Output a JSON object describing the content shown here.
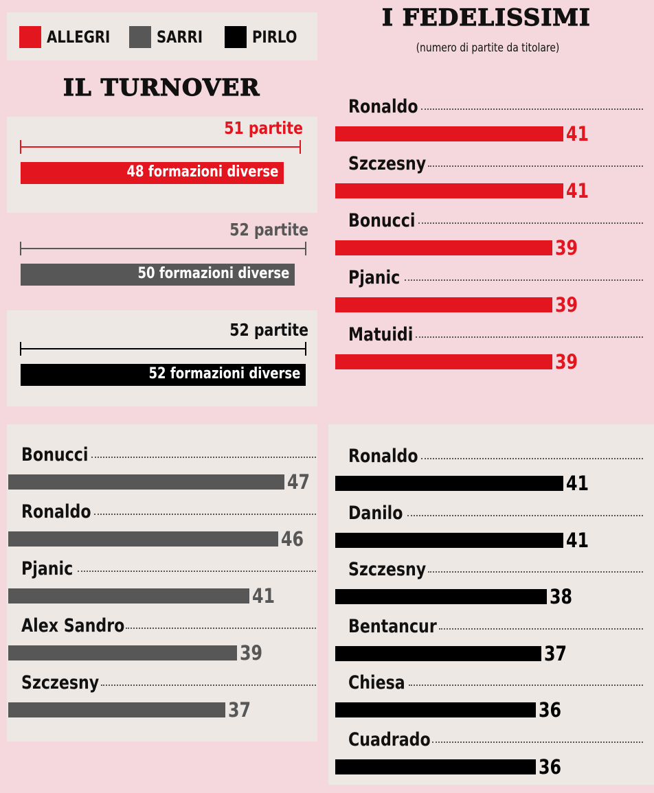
{
  "legend": [
    {
      "label": "ALLEGRI",
      "color": "#e3151f"
    },
    {
      "label": "SARRI",
      "color": "#575757"
    },
    {
      "label": "PIRLO",
      "color": "#000000"
    }
  ],
  "turnover": {
    "title": "IL TURNOVER",
    "items": [
      {
        "coach": "ALLEGRI",
        "partite_label": "51 partite",
        "formazioni_label": "48 formazioni diverse",
        "partite": 51,
        "formazioni": 48,
        "color": "#e3151f",
        "label_color": "#e3151f"
      },
      {
        "coach": "SARRI",
        "partite_label": "52 partite",
        "formazioni_label": "50 formazioni diverse",
        "partite": 52,
        "formazioni": 50,
        "color": "#575757",
        "label_color": "#575757"
      },
      {
        "coach": "PIRLO",
        "partite_label": "52 partite",
        "formazioni_label": "52 formazioni diverse",
        "partite": 52,
        "formazioni": 52,
        "color": "#000000",
        "label_color": "#111111"
      }
    ]
  },
  "fedelissimi": {
    "title": "I FEDELISSIMI",
    "subtitle": "(numero di partite da titolare)"
  },
  "chart_data": {
    "type": "bar",
    "series": [
      {
        "name": "ALLEGRI",
        "color": "#e3151f",
        "values_color": "#e3151f",
        "players": [
          "Ronaldo",
          "Szczesny",
          "Bonucci",
          "Pjanic",
          "Matuidi"
        ],
        "values": [
          41,
          41,
          39,
          39,
          39
        ]
      },
      {
        "name": "SARRI",
        "color": "#575757",
        "values_color": "#575757",
        "players": [
          "Bonucci",
          "Ronaldo",
          "Pjanic",
          "Alex Sandro",
          "Szczesny"
        ],
        "values": [
          47,
          46,
          41,
          39,
          37
        ]
      },
      {
        "name": "PIRLO",
        "color": "#000000",
        "values_color": "#000000",
        "players": [
          "Ronaldo",
          "Danilo",
          "Szczesny",
          "Bentancur",
          "Chiesa",
          "Cuadrado"
        ],
        "values": [
          41,
          41,
          38,
          37,
          36,
          36
        ]
      }
    ]
  }
}
